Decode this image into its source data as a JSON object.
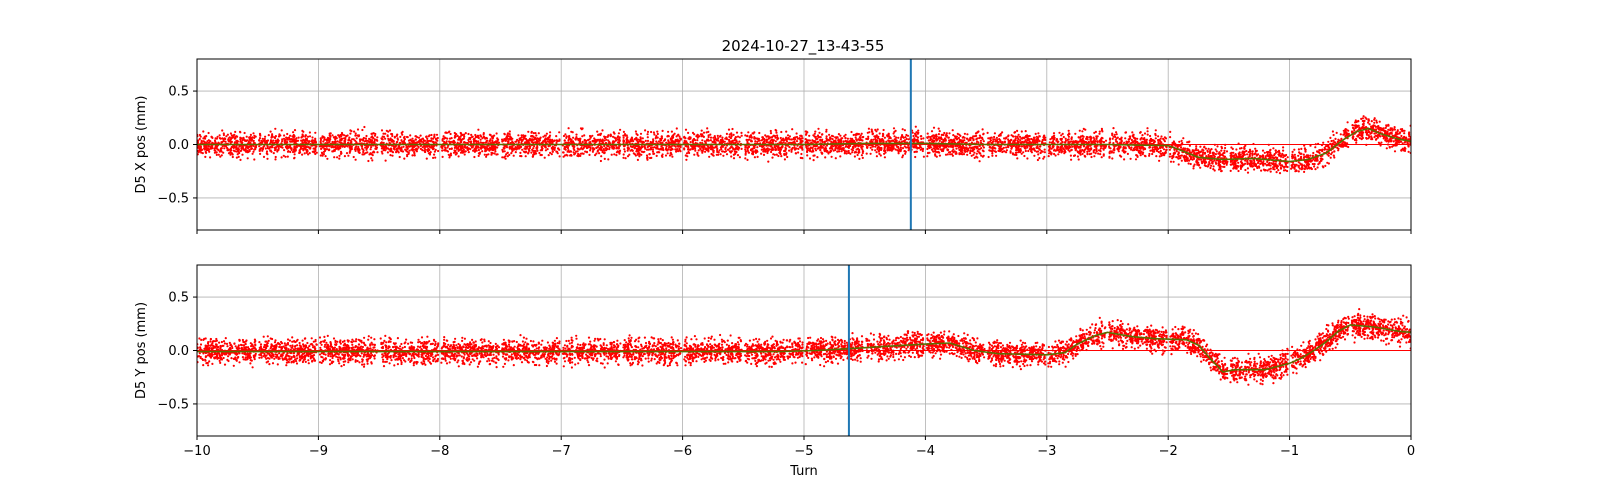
{
  "title": "2024-10-27_13-43-55",
  "chart_data": [
    {
      "type": "scatter",
      "ylabel": "D5 X pos (mm)",
      "xlabel": "",
      "xlim": [
        -10,
        0
      ],
      "ylim": [
        -0.8,
        0.8
      ],
      "grid": true,
      "xticks": [
        -10,
        -9,
        -8,
        -7,
        -6,
        -5,
        -4,
        -3,
        -2,
        -1,
        0
      ],
      "xtick_labels": [],
      "yticks": [
        0.5,
        0.0,
        -0.5
      ],
      "ytick_labels": [
        "0.5",
        "0.0",
        "−0.5"
      ],
      "vline_x": -4.12,
      "point_color": "#ff0000",
      "trend_color": "#5a6e00",
      "vline_color": "#1f77b4",
      "noise_halfwidth": 0.09,
      "trend": [
        [
          -10,
          0
        ],
        [
          -9,
          0
        ],
        [
          -8,
          0
        ],
        [
          -7,
          0
        ],
        [
          -6,
          0
        ],
        [
          -5,
          0
        ],
        [
          -4.5,
          0.01
        ],
        [
          -4,
          0.01
        ],
        [
          -3.5,
          0
        ],
        [
          -3,
          0
        ],
        [
          -2.5,
          0
        ],
        [
          -2,
          -0.01
        ],
        [
          -1.95,
          -0.03
        ],
        [
          -1.75,
          -0.12
        ],
        [
          -1.55,
          -0.14
        ],
        [
          -1.3,
          -0.13
        ],
        [
          -1.0,
          -0.16
        ],
        [
          -0.85,
          -0.14
        ],
        [
          -0.7,
          -0.08
        ],
        [
          -0.55,
          0.05
        ],
        [
          -0.45,
          0.12
        ],
        [
          -0.35,
          0.15
        ],
        [
          -0.25,
          0.1
        ],
        [
          -0.1,
          0.05
        ],
        [
          0,
          0.03
        ]
      ],
      "gaps": [
        -9.5,
        -9,
        -8.5,
        -8,
        -7.5,
        -7,
        -6.5,
        -6,
        -5.5,
        -5,
        -4.5,
        -4,
        -3.5,
        -3,
        -2.5,
        -2,
        -1.5,
        -1,
        -0.5
      ]
    },
    {
      "type": "scatter",
      "ylabel": "D5 Y pos (mm)",
      "xlabel": "Turn",
      "xlim": [
        -10,
        0
      ],
      "ylim": [
        -0.8,
        0.8
      ],
      "grid": true,
      "xticks": [
        -10,
        -9,
        -8,
        -7,
        -6,
        -5,
        -4,
        -3,
        -2,
        -1,
        0
      ],
      "xtick_labels": [
        "−10",
        "−9",
        "−8",
        "−7",
        "−6",
        "−5",
        "−4",
        "−3",
        "−2",
        "−1",
        "0"
      ],
      "yticks": [
        0.5,
        0.0,
        -0.5
      ],
      "ytick_labels": [
        "0.5",
        "0.0",
        "−0.5"
      ],
      "vline_x": -4.63,
      "point_color": "#ff0000",
      "trend_color": "#5a6e00",
      "vline_color": "#1f77b4",
      "noise_halfwidth": 0.09,
      "trend": [
        [
          -10,
          -0.01
        ],
        [
          -9,
          -0.01
        ],
        [
          -8,
          -0.01
        ],
        [
          -7,
          -0.01
        ],
        [
          -6,
          -0.01
        ],
        [
          -5.2,
          -0.01
        ],
        [
          -4.9,
          0.0
        ],
        [
          -4.6,
          0.02
        ],
        [
          -4.3,
          0.04
        ],
        [
          -4.0,
          0.06
        ],
        [
          -3.8,
          0.07
        ],
        [
          -3.6,
          0.0
        ],
        [
          -3.4,
          -0.03
        ],
        [
          -3.0,
          -0.04
        ],
        [
          -2.85,
          -0.02
        ],
        [
          -2.75,
          0.06
        ],
        [
          -2.6,
          0.14
        ],
        [
          -2.5,
          0.17
        ],
        [
          -2.3,
          0.13
        ],
        [
          -2.1,
          0.11
        ],
        [
          -1.85,
          0.1
        ],
        [
          -1.75,
          0.05
        ],
        [
          -1.65,
          -0.08
        ],
        [
          -1.55,
          -0.2
        ],
        [
          -1.45,
          -0.18
        ],
        [
          -1.2,
          -0.18
        ],
        [
          -1.0,
          -0.12
        ],
        [
          -0.9,
          -0.07
        ],
        [
          -0.8,
          0.0
        ],
        [
          -0.7,
          0.08
        ],
        [
          -0.6,
          0.18
        ],
        [
          -0.5,
          0.24
        ],
        [
          -0.3,
          0.22
        ],
        [
          -0.1,
          0.18
        ],
        [
          0,
          0.17
        ]
      ],
      "gaps": [
        -9.5,
        -9,
        -8.5,
        -8,
        -7.5,
        -7,
        -6.5,
        -6,
        -5.5,
        -5,
        -4.5,
        -4,
        -3.5,
        -3,
        -2.5,
        -2,
        -1.5,
        -1,
        -0.5
      ]
    }
  ]
}
